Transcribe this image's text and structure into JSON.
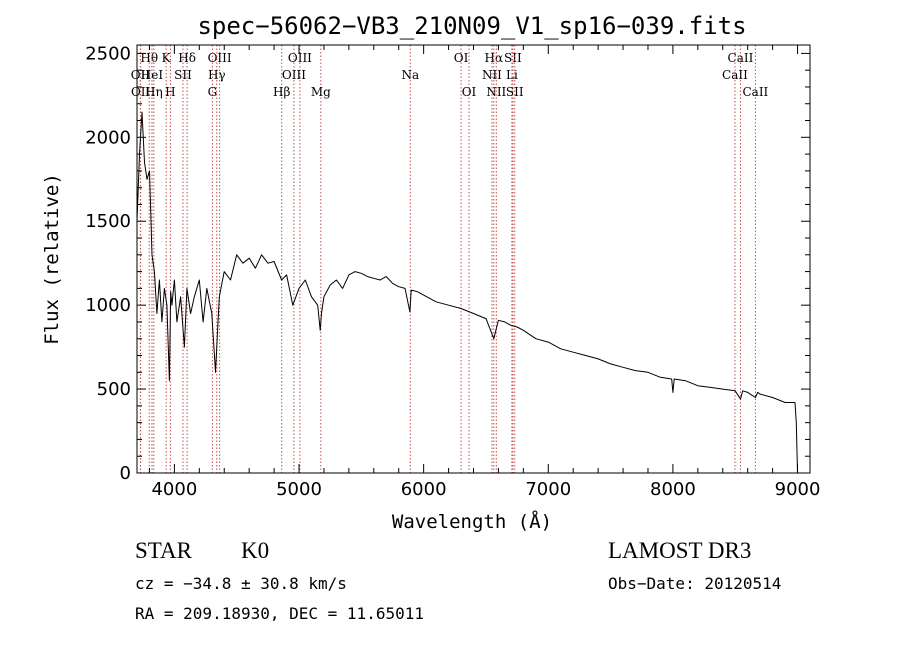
{
  "chart_data": {
    "type": "line",
    "title": "spec−56062−VB3_210N09_V1_sp16−039.fits",
    "xlabel": "Wavelength (Å)",
    "ylabel": "Flux (relative)",
    "xlim": [
      3700,
      9100
    ],
    "ylim": [
      0,
      2550
    ],
    "xticks": [
      4000,
      5000,
      6000,
      7000,
      8000,
      9000
    ],
    "yticks": [
      0,
      500,
      1000,
      1500,
      2000,
      2500
    ],
    "series": [
      {
        "name": "flux",
        "x": [
          3700,
          3720,
          3740,
          3760,
          3780,
          3800,
          3820,
          3840,
          3860,
          3880,
          3900,
          3920,
          3940,
          3960,
          3970,
          3980,
          4000,
          4020,
          4050,
          4080,
          4100,
          4130,
          4160,
          4200,
          4230,
          4260,
          4300,
          4330,
          4360,
          4400,
          4450,
          4500,
          4550,
          4600,
          4650,
          4700,
          4750,
          4800,
          4860,
          4900,
          4950,
          5000,
          5050,
          5100,
          5150,
          5170,
          5180,
          5200,
          5250,
          5300,
          5350,
          5400,
          5450,
          5500,
          5550,
          5600,
          5650,
          5700,
          5750,
          5800,
          5850,
          5890,
          5900,
          5950,
          6000,
          6100,
          6200,
          6300,
          6400,
          6500,
          6563,
          6600,
          6650,
          6700,
          6750,
          6800,
          6900,
          7000,
          7100,
          7200,
          7300,
          7400,
          7500,
          7600,
          7700,
          7800,
          7900,
          7990,
          8000,
          8010,
          8100,
          8200,
          8300,
          8400,
          8500,
          8542,
          8560,
          8600,
          8662,
          8680,
          8700,
          8800,
          8900,
          8980,
          8990,
          9000
        ],
        "y": [
          1500,
          1900,
          2150,
          1850,
          1750,
          1800,
          1300,
          1200,
          950,
          1150,
          900,
          1100,
          1000,
          550,
          1080,
          1000,
          1150,
          900,
          1050,
          750,
          1100,
          950,
          1050,
          1150,
          900,
          1100,
          950,
          600,
          1050,
          1200,
          1150,
          1300,
          1250,
          1280,
          1220,
          1300,
          1250,
          1260,
          1150,
          1180,
          1000,
          1100,
          1150,
          1050,
          1000,
          850,
          950,
          1050,
          1120,
          1150,
          1100,
          1180,
          1200,
          1190,
          1170,
          1160,
          1150,
          1170,
          1130,
          1110,
          1100,
          960,
          1090,
          1080,
          1060,
          1020,
          1000,
          980,
          950,
          920,
          800,
          910,
          900,
          880,
          870,
          850,
          800,
          780,
          740,
          720,
          700,
          680,
          650,
          630,
          610,
          600,
          570,
          560,
          480,
          560,
          550,
          520,
          510,
          500,
          490,
          440,
          490,
          480,
          450,
          480,
          470,
          450,
          420,
          420,
          300,
          0
        ]
      }
    ],
    "line_markers": [
      {
        "label": "OII",
        "x": 3727,
        "row": 2
      },
      {
        "label": "OII",
        "x": 3729,
        "row": 3
      },
      {
        "label": "Hθ",
        "x": 3798,
        "row": 1
      },
      {
        "label": "HeI",
        "x": 3820,
        "row": 2
      },
      {
        "label": "Hη",
        "x": 3835,
        "row": 3
      },
      {
        "label": "K",
        "x": 3934,
        "row": 1
      },
      {
        "label": "SII",
        "x": 4069,
        "row": 2
      },
      {
        "label": "H",
        "x": 3968,
        "row": 3
      },
      {
        "label": "Hδ",
        "x": 4102,
        "row": 1
      },
      {
        "label": "OIII",
        "x": 4363,
        "row": 1
      },
      {
        "label": "Hγ",
        "x": 4340,
        "row": 2
      },
      {
        "label": "G",
        "x": 4305,
        "row": 3
      },
      {
        "label": "Hβ",
        "x": 4861,
        "row": 3
      },
      {
        "label": "OIII",
        "x": 5007,
        "row": 1
      },
      {
        "label": "OIII",
        "x": 4959,
        "row": 2
      },
      {
        "label": "Mg",
        "x": 5175,
        "row": 3
      },
      {
        "label": "Na",
        "x": 5893,
        "row": 2
      },
      {
        "label": "OI",
        "x": 6300,
        "row": 1
      },
      {
        "label": "OI",
        "x": 6364,
        "row": 3
      },
      {
        "label": "Hα",
        "x": 6563,
        "row": 1
      },
      {
        "label": "NII",
        "x": 6548,
        "row": 2
      },
      {
        "label": "NII",
        "x": 6583,
        "row": 3
      },
      {
        "label": "SII",
        "x": 6716,
        "row": 1
      },
      {
        "label": "Li",
        "x": 6708,
        "row": 2
      },
      {
        "label": "SII",
        "x": 6731,
        "row": 3
      },
      {
        "label": "CaII",
        "x": 8542,
        "row": 1
      },
      {
        "label": "CaII",
        "x": 8498,
        "row": 2
      },
      {
        "label": "CaII",
        "x": 8662,
        "row": 3
      }
    ]
  },
  "info": {
    "class": "STAR",
    "subclass": "K0",
    "survey": "LAMOST DR3",
    "cz": "cz = −34.8 ± 30.8 km/s",
    "obs_date": "Obs−Date: 20120514",
    "coords": "RA = 209.18930, DEC =  11.65011"
  }
}
